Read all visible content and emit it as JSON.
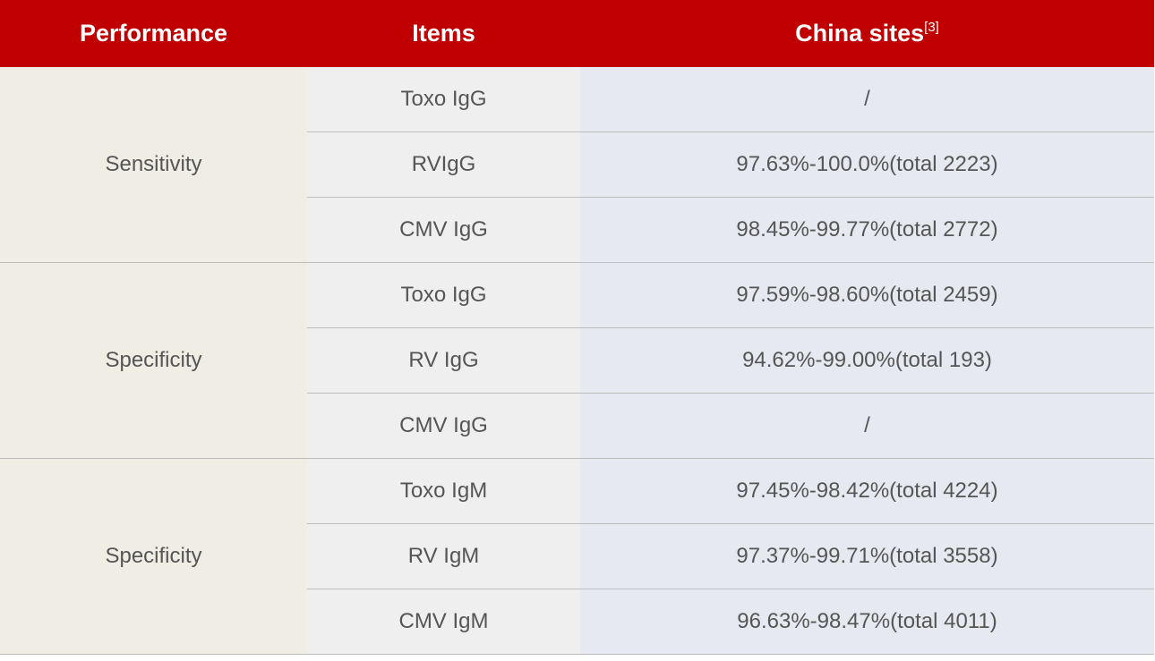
{
  "header": {
    "performance": "Performance",
    "items": "Items",
    "sites": "China sites",
    "sites_ref": "[3]"
  },
  "colors": {
    "header_bg": "#c00000",
    "performance_bg": "#efede4",
    "items_bg": "#efefef",
    "values_bg": "#e6e9ef"
  },
  "groups": [
    {
      "performance": "Sensitivity",
      "rows": [
        {
          "item": "Toxo IgG",
          "value": "/"
        },
        {
          "item": "RVIgG",
          "value": "97.63%-100.0%(total 2223)"
        },
        {
          "item": "CMV IgG",
          "value": "98.45%-99.77%(total 2772)"
        }
      ]
    },
    {
      "performance": "Specificity",
      "rows": [
        {
          "item": "Toxo IgG",
          "value": "97.59%-98.60%(total 2459)"
        },
        {
          "item": "RV IgG",
          "value": "94.62%-99.00%(total 193)"
        },
        {
          "item": "CMV IgG",
          "value": "/"
        }
      ]
    },
    {
      "performance": "Specificity",
      "rows": [
        {
          "item": "Toxo IgM",
          "value": "97.45%-98.42%(total 4224)"
        },
        {
          "item": "RV IgM",
          "value": "97.37%-99.71%(total 3558)"
        },
        {
          "item": "CMV IgM",
          "value": "96.63%-98.47%(total 4011)"
        }
      ]
    }
  ]
}
